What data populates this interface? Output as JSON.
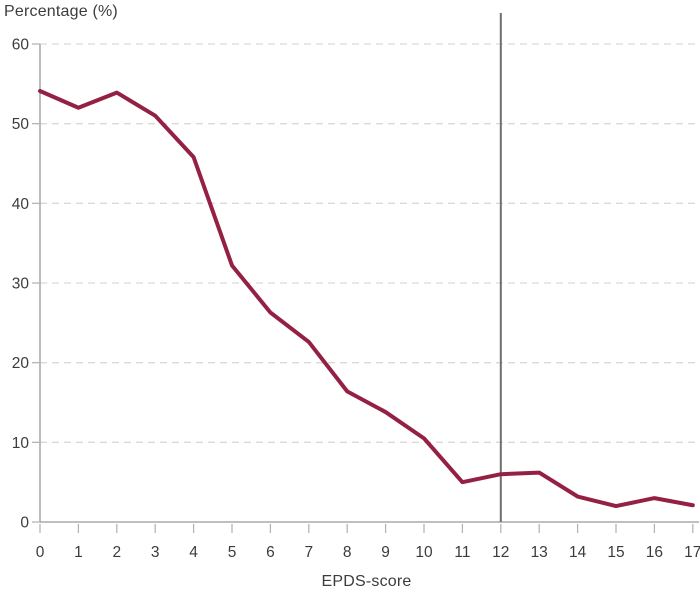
{
  "chart_data": {
    "type": "line",
    "title": "Percentage (%)",
    "xlabel": "EPDS-score",
    "ylabel": "Percentage (%)",
    "x": [
      0,
      1,
      2,
      3,
      4,
      5,
      6,
      7,
      8,
      9,
      10,
      11,
      12,
      13,
      14,
      15,
      16,
      17
    ],
    "values": [
      54.1,
      52,
      53.9,
      51,
      45.8,
      32.2,
      26.3,
      22.6,
      16.4,
      13.8,
      10.5,
      5,
      6,
      6.2,
      3.2,
      2,
      3,
      2.1
    ],
    "ylim": [
      0,
      60
    ],
    "yticks": [
      0,
      10,
      20,
      30,
      40,
      50,
      60
    ],
    "xlim": [
      0,
      17
    ],
    "grid": "horizontal dashed gridlines at each y tick",
    "legend": "none",
    "annotations": [
      {
        "type": "vline",
        "x": 12
      }
    ]
  },
  "colors": {
    "line": "#942144",
    "vline": "#6e6e6e",
    "axis": "#999999",
    "tick": "#b5b5b5",
    "grid": "#d9d9d9",
    "text": "#3c3c3c",
    "background": "#ffffff"
  }
}
